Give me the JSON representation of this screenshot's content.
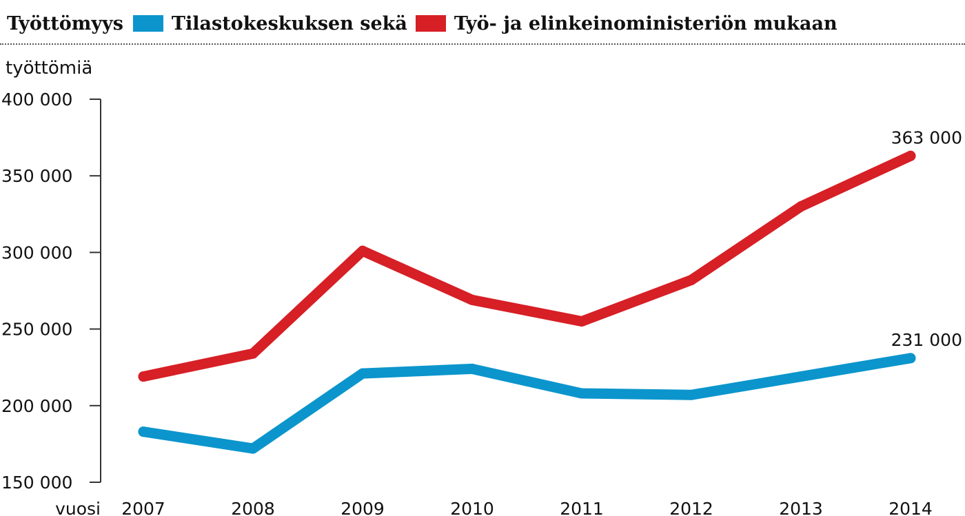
{
  "header": {
    "title": "Työttömyys"
  },
  "chart_data": {
    "type": "line",
    "ylabel": "työttömiä",
    "xlabel": "vuosi",
    "categories": [
      "2007",
      "2008",
      "2009",
      "2010",
      "2011",
      "2012",
      "2013",
      "2014"
    ],
    "ylim": [
      150000,
      400000
    ],
    "yticks": [
      150000,
      200000,
      250000,
      300000,
      350000,
      400000
    ],
    "ytick_labels": [
      "150 000",
      "200 000",
      "250 000",
      "300 000",
      "350 000",
      "400 000"
    ],
    "grid": false,
    "legend_position": "top",
    "series": [
      {
        "name": "Tilastokeskuksen sekä",
        "color": "#0b95cc",
        "values": [
          183000,
          172000,
          221000,
          224000,
          208000,
          207000,
          219000,
          231000
        ],
        "end_label": "231 000"
      },
      {
        "name": "Työ- ja elinkeinoministeriön mukaan",
        "color": "#d71f26",
        "values": [
          219000,
          234000,
          301000,
          269000,
          255000,
          282000,
          330000,
          363000
        ],
        "end_label": "363 000"
      }
    ]
  }
}
